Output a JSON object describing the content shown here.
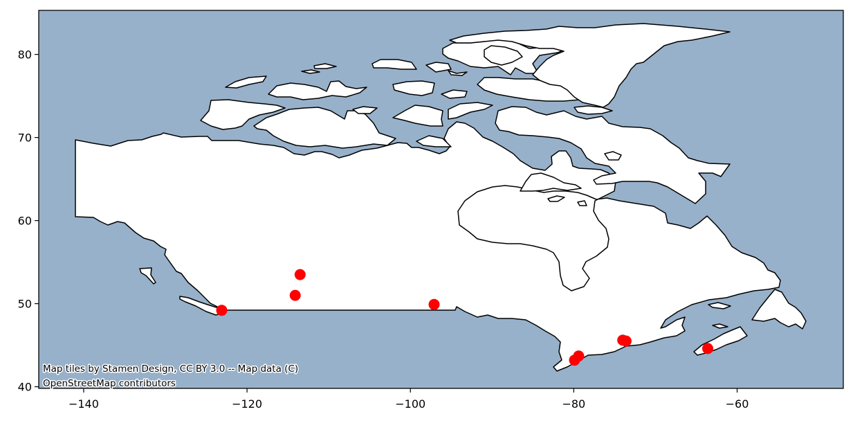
{
  "chart_data": {
    "type": "scatter",
    "title": "",
    "xlabel": "",
    "ylabel": "",
    "xlim": [
      -145.5,
      -47.0
    ],
    "ylim": [
      39.8,
      85.3
    ],
    "grid": false,
    "legend": "none",
    "x_ticks": [
      -140,
      -120,
      -100,
      -80,
      -60
    ],
    "y_ticks": [
      40,
      50,
      60,
      70,
      80
    ],
    "x_tick_labels": [
      "−140",
      "−120",
      "−100",
      "−80",
      "−60"
    ],
    "y_tick_labels": [
      "40",
      "50",
      "60",
      "70",
      "80"
    ],
    "series": [
      {
        "marker": "circle",
        "points": [
          {
            "x": -123.1,
            "y": 49.2
          },
          {
            "x": -113.5,
            "y": 53.5
          },
          {
            "x": -114.1,
            "y": 51.0
          },
          {
            "x": -97.1,
            "y": 49.9
          },
          {
            "x": -79.4,
            "y": 43.7
          },
          {
            "x": -79.9,
            "y": 43.2
          },
          {
            "x": -73.6,
            "y": 45.5
          },
          {
            "x": -74.0,
            "y": 45.6
          },
          {
            "x": -63.6,
            "y": 44.6
          }
        ]
      }
    ],
    "annotations": [
      "Map tiles by Stamen Design, CC BY 3.0 -- Map data (C)",
      "OpenStreetMap contributors"
    ]
  },
  "colors": {
    "ocean": "#98b1ca",
    "land": "#ffffff",
    "outline": "#000000",
    "points": "#ff0000"
  }
}
